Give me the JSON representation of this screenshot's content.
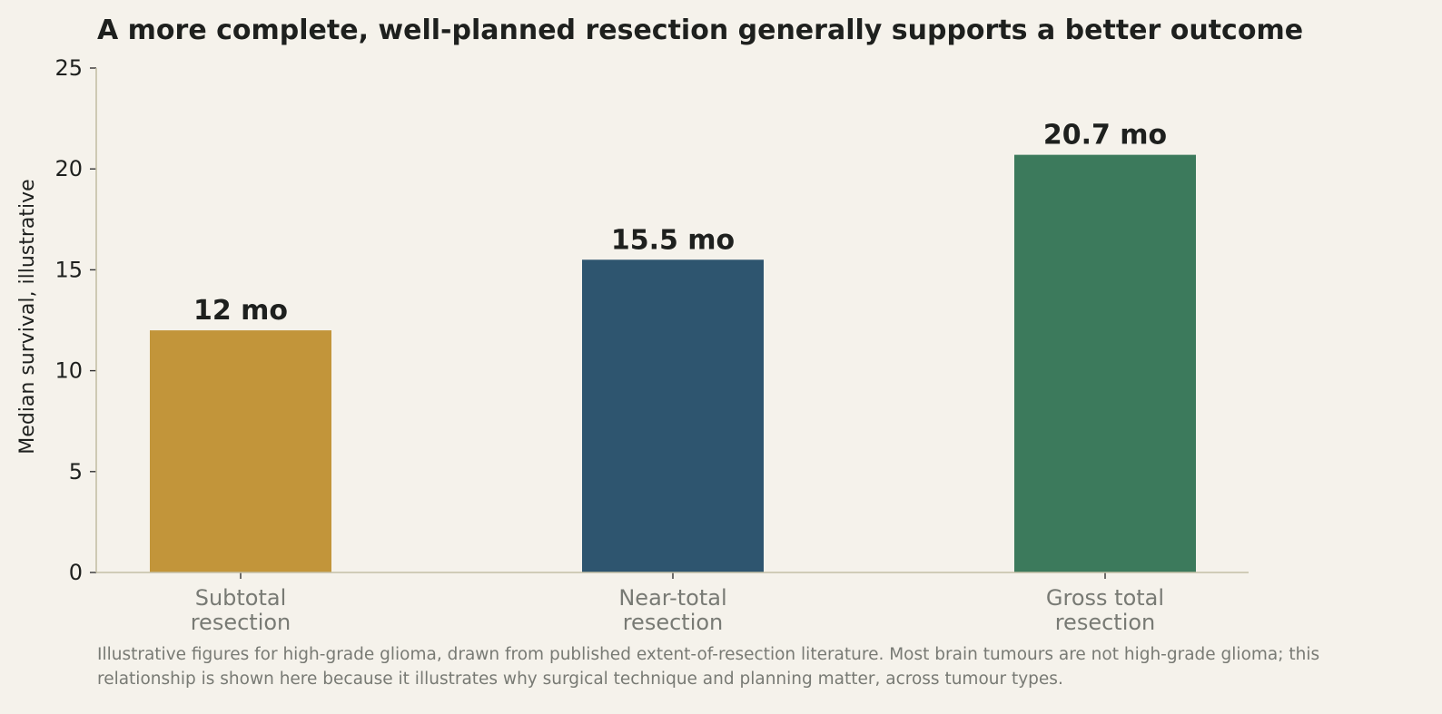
{
  "chart_data": {
    "type": "bar",
    "title": "A more complete, well-planned resection generally supports a better outcome",
    "ylabel": "Median survival, illustrative",
    "xlabel": "",
    "ylim": [
      0,
      25
    ],
    "yticks": [
      0,
      5,
      10,
      15,
      20,
      25
    ],
    "categories": [
      [
        "Subtotal",
        "resection"
      ],
      [
        "Near-total",
        "resection"
      ],
      [
        "Gross total",
        "resection"
      ]
    ],
    "values": [
      12,
      15.5,
      20.7
    ],
    "data_labels": [
      "12 mo",
      "15.5 mo",
      "20.7 mo"
    ],
    "colors": [
      "#c2953a",
      "#2e556f",
      "#3c7a5c"
    ],
    "grid": false,
    "legend": "none"
  },
  "footnote": "Illustrative figures for high-grade glioma, drawn from published extent-of-resection literature. Most brain tumours are not high-grade glioma; this relationship is shown here because it illustrates why surgical technique and planning matter, across tumour types.",
  "colors": {
    "background": "#f5f2eb",
    "axis": "#c4bfa6",
    "text": "#1e201e",
    "muted_text": "#787a74"
  }
}
